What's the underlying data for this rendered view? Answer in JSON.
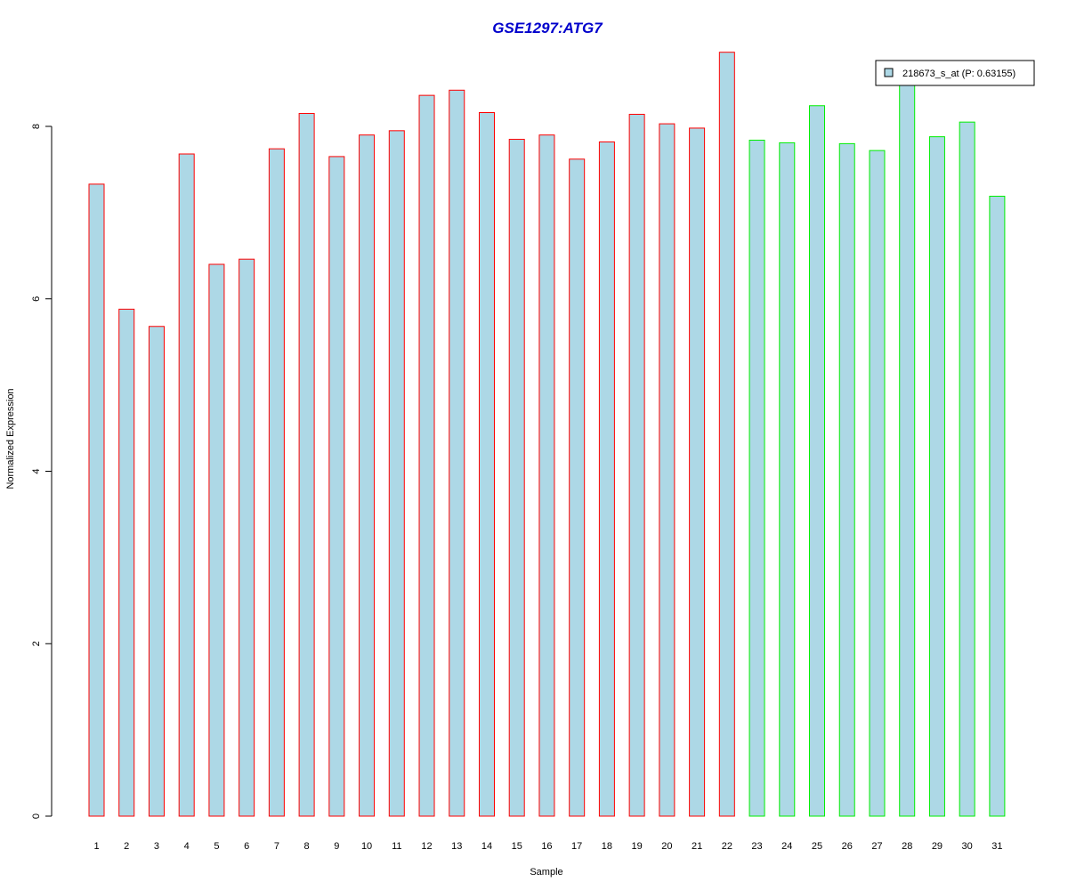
{
  "chart_data": {
    "type": "bar",
    "title": "GSE1297:ATG7",
    "xlabel": "Sample",
    "ylabel": "Normalized Expression",
    "ylim": [
      0,
      8.9
    ],
    "yticks": [
      0,
      2,
      4,
      6,
      8
    ],
    "grid": false,
    "legend_position": "top-right",
    "categories": [
      "1",
      "2",
      "3",
      "4",
      "5",
      "6",
      "7",
      "8",
      "9",
      "10",
      "11",
      "12",
      "13",
      "14",
      "15",
      "16",
      "17",
      "18",
      "19",
      "20",
      "21",
      "22",
      "23",
      "24",
      "25",
      "26",
      "27",
      "28",
      "29",
      "30",
      "31"
    ],
    "series": [
      {
        "name": "218673_s_at (P: 0.63155)",
        "values": [
          7.33,
          5.88,
          5.68,
          7.68,
          6.4,
          6.46,
          7.74,
          8.15,
          7.65,
          7.9,
          7.95,
          8.36,
          8.42,
          8.16,
          7.85,
          7.9,
          7.62,
          7.82,
          8.14,
          8.03,
          7.98,
          8.86,
          7.84,
          7.81,
          8.24,
          7.8,
          7.72,
          8.5,
          7.88,
          8.05,
          7.19
        ]
      }
    ],
    "groups": [
      {
        "from": 1,
        "to": 22,
        "border_color": "#ff0000"
      },
      {
        "from": 23,
        "to": 31,
        "border_color": "#00ee00"
      }
    ]
  },
  "colors": {
    "bar_fill": "#add8e6",
    "title": "#0000cc",
    "axis": "#000000"
  }
}
